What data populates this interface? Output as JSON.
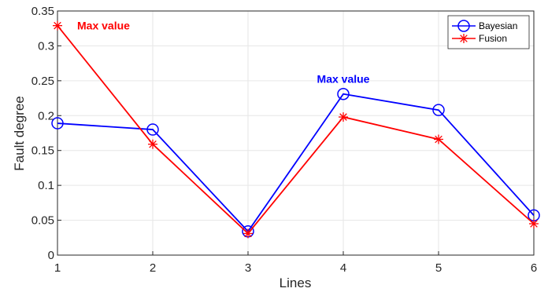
{
  "chart_data": {
    "type": "line",
    "title": "",
    "xlabel": "Lines",
    "ylabel": "Fault degree",
    "categories": [
      1,
      2,
      3,
      4,
      5,
      6
    ],
    "xlim": [
      1,
      6
    ],
    "ylim": [
      0,
      0.35
    ],
    "x_ticks": [
      "1",
      "2",
      "3",
      "4",
      "5",
      "6"
    ],
    "y_ticks": [
      "0",
      "0.05",
      "0.1",
      "0.15",
      "0.2",
      "0.25",
      "0.3",
      "0.35"
    ],
    "grid": true,
    "legend_position": "top-right",
    "series": [
      {
        "name": "Bayesian",
        "values": [
          0.189,
          0.18,
          0.034,
          0.231,
          0.208,
          0.057
        ],
        "color": "#0000ff",
        "marker": "circle"
      },
      {
        "name": "Fusion",
        "values": [
          0.329,
          0.159,
          0.031,
          0.198,
          0.166,
          0.045
        ],
        "color": "#ff0000",
        "marker": "asterisk"
      }
    ],
    "annotations": [
      {
        "text": "Max value",
        "color": "#ff0000",
        "x": 1,
        "y": 0.329
      },
      {
        "text": "Max value",
        "color": "#0000ff",
        "x": 4,
        "y": 0.231
      }
    ]
  }
}
